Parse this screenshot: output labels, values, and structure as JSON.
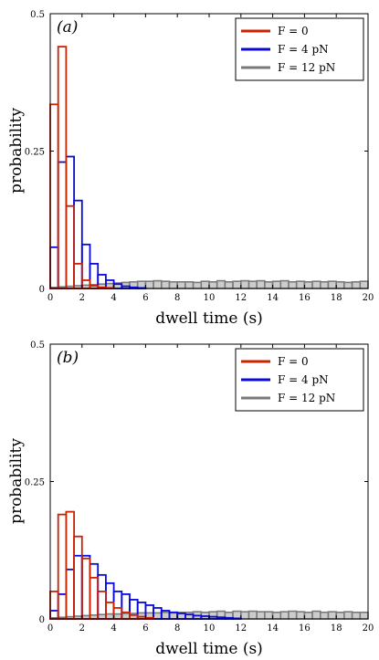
{
  "chart_data": [
    {
      "type": "bar",
      "panel_label": "(a)",
      "xlabel": "dwell time (s)",
      "ylabel": "probability",
      "xlim": [
        0,
        20
      ],
      "ylim": [
        0,
        0.5
      ],
      "x_ticks": [
        "0",
        "2",
        "4",
        "6",
        "8",
        "10",
        "12",
        "14",
        "16",
        "18",
        "20"
      ],
      "y_ticks": [
        "0",
        "0.25",
        "0.5"
      ],
      "bin_width": 0.5,
      "legend_position": "top-right",
      "series": [
        {
          "name": "F = 0",
          "color": "#cc2200",
          "fill": "none",
          "values": [
            0.335,
            0.44,
            0.15,
            0.045,
            0.015,
            0.005,
            0.002,
            0.001
          ]
        },
        {
          "name": "F = 4 pN",
          "color": "#0a0adb",
          "fill": "none",
          "values": [
            0.075,
            0.23,
            0.24,
            0.16,
            0.08,
            0.045,
            0.025,
            0.015,
            0.008,
            0.004,
            0.002,
            0.001
          ]
        },
        {
          "name": "F = 12 pN",
          "color": "#7a7a7a",
          "fill": "#cccccc",
          "values": [
            0.002,
            0.003,
            0.004,
            0.005,
            0.006,
            0.007,
            0.008,
            0.009,
            0.01,
            0.011,
            0.012,
            0.013,
            0.013,
            0.014,
            0.013,
            0.012,
            0.012,
            0.012,
            0.011,
            0.013,
            0.012,
            0.014,
            0.012,
            0.013,
            0.014,
            0.013,
            0.014,
            0.012,
            0.013,
            0.014,
            0.012,
            0.013,
            0.012,
            0.013,
            0.012,
            0.013,
            0.012,
            0.011,
            0.012,
            0.013
          ]
        }
      ]
    },
    {
      "type": "bar",
      "panel_label": "(b)",
      "xlabel": "dwell time (s)",
      "ylabel": "probability",
      "xlim": [
        0,
        20
      ],
      "ylim": [
        0,
        0.5
      ],
      "x_ticks": [
        "0",
        "2",
        "4",
        "6",
        "8",
        "10",
        "12",
        "14",
        "16",
        "18",
        "20"
      ],
      "y_ticks": [
        "0",
        "0.25",
        "0.5"
      ],
      "bin_width": 0.5,
      "legend_position": "top-right",
      "series": [
        {
          "name": "F = 0",
          "color": "#cc2200",
          "fill": "none",
          "values": [
            0.05,
            0.19,
            0.195,
            0.15,
            0.11,
            0.075,
            0.05,
            0.03,
            0.02,
            0.012,
            0.007,
            0.004,
            0.002
          ]
        },
        {
          "name": "F = 4 pN",
          "color": "#0a0adb",
          "fill": "none",
          "values": [
            0.015,
            0.045,
            0.09,
            0.115,
            0.115,
            0.1,
            0.08,
            0.065,
            0.05,
            0.045,
            0.035,
            0.03,
            0.025,
            0.02,
            0.015,
            0.012,
            0.01,
            0.008,
            0.006,
            0.005,
            0.004,
            0.003,
            0.002,
            0.001
          ]
        },
        {
          "name": "F = 12 pN",
          "color": "#7a7a7a",
          "fill": "#cccccc",
          "values": [
            0.002,
            0.003,
            0.004,
            0.005,
            0.006,
            0.007,
            0.008,
            0.009,
            0.009,
            0.01,
            0.01,
            0.011,
            0.011,
            0.011,
            0.012,
            0.011,
            0.012,
            0.012,
            0.013,
            0.012,
            0.013,
            0.014,
            0.012,
            0.014,
            0.013,
            0.014,
            0.013,
            0.013,
            0.012,
            0.013,
            0.014,
            0.013,
            0.012,
            0.014,
            0.012,
            0.013,
            0.012,
            0.013,
            0.012,
            0.012
          ]
        }
      ]
    }
  ]
}
